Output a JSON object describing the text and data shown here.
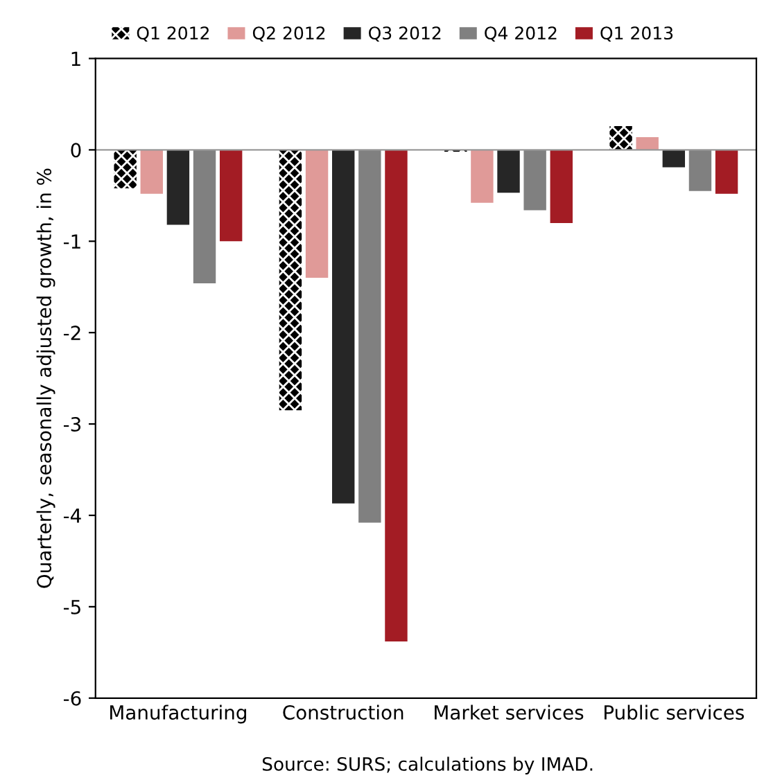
{
  "chart_data": {
    "type": "bar",
    "ylabel": "Quarterly, seasonally adjusted growth, in %",
    "categories": [
      "Manufacturing",
      "Construction",
      "Market services",
      "Public services"
    ],
    "series": [
      {
        "name": "Q1 2012",
        "color": "#000000",
        "values": [
          -0.42,
          -2.85,
          -0.02,
          0.26
        ]
      },
      {
        "name": "Q2 2012",
        "color": "#e09a98",
        "values": [
          -0.48,
          -1.4,
          -0.58,
          0.14
        ]
      },
      {
        "name": "Q3 2012",
        "color": "#262626",
        "values": [
          -0.82,
          -3.87,
          -0.47,
          -0.19
        ]
      },
      {
        "name": "Q4 2012",
        "color": "#808080",
        "values": [
          -1.46,
          -4.08,
          -0.66,
          -0.45
        ]
      },
      {
        "name": "Q1 2013",
        "color": "#a31c24",
        "values": [
          -1.0,
          -5.38,
          -0.8,
          -0.48
        ]
      }
    ],
    "ylim": [
      -6,
      1
    ],
    "yticks": [
      -6,
      -5,
      -4,
      -3,
      -2,
      -1,
      0,
      1
    ],
    "grid": false,
    "ref_lines": [
      {
        "axis": "y",
        "value": 0,
        "color": "#999999"
      }
    ],
    "legend": "top",
    "annotations": [
      "Source: SURS; calculations by IMAD."
    ]
  }
}
